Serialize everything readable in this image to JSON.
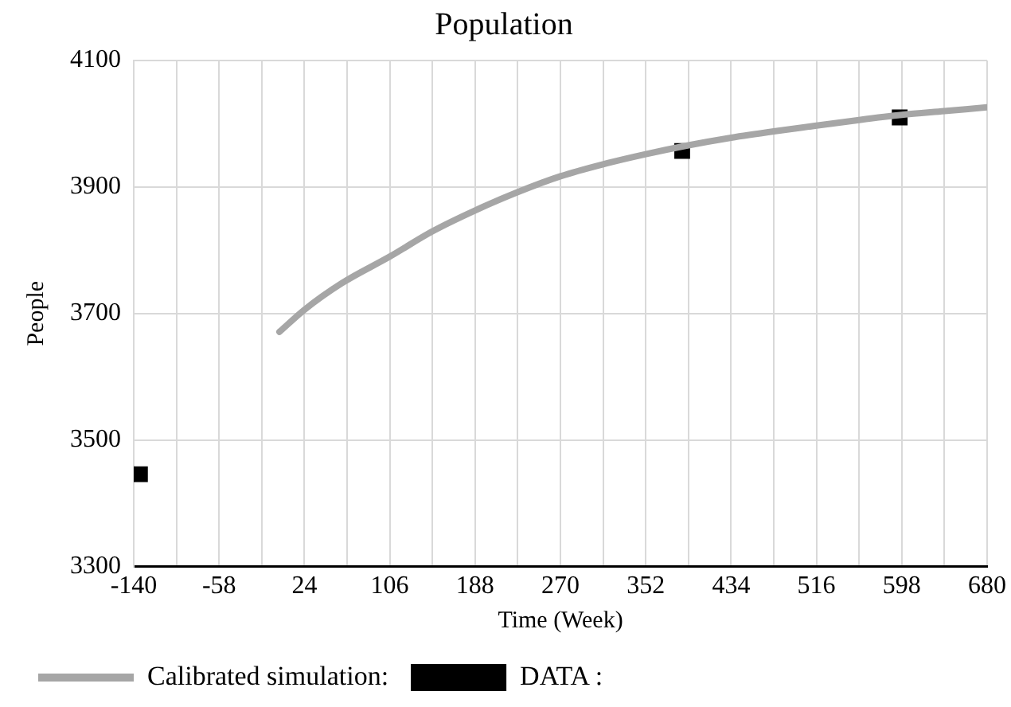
{
  "chart_data": {
    "type": "line",
    "title": "Population",
    "xlabel": "Time (Week)",
    "ylabel": "People",
    "xlim": [
      -140,
      680
    ],
    "xticks": [
      -140,
      {
        "value": -99,
        "label": null
      },
      -58,
      {
        "value": -17,
        "label": null
      },
      24,
      {
        "value": 65,
        "label": null
      },
      106,
      {
        "value": 147,
        "label": null
      },
      188,
      {
        "value": 229,
        "label": null
      },
      270,
      {
        "value": 311,
        "label": null
      },
      352,
      {
        "value": 393,
        "label": null
      },
      434,
      {
        "value": 475,
        "label": null
      },
      516,
      {
        "value": 557,
        "label": null
      },
      598,
      {
        "value": 639,
        "label": null
      },
      680
    ],
    "ylim": [
      3300,
      4100
    ],
    "yticks": [
      3300,
      3500,
      3700,
      3900,
      4100
    ],
    "grid": true,
    "legend": "bottom",
    "series": [
      {
        "name": "Calibrated simulation:",
        "color": "#a6a6a6",
        "marker": "none",
        "line_style": "solid",
        "x": [
          0,
          24,
          60,
          106,
          147,
          188,
          229,
          270,
          311,
          352,
          393,
          434,
          475,
          516,
          557,
          598,
          639,
          680
        ],
        "values": [
          3671,
          3706,
          3748,
          3790,
          3830,
          3863,
          3892,
          3917,
          3936,
          3952,
          3966,
          3978,
          3988,
          3997,
          4006,
          4014,
          4020,
          4026
        ]
      },
      {
        "name": "DATA :",
        "type": "scatter",
        "color": "#000000",
        "marker": "square",
        "x": [
          -134,
          387,
          596
        ],
        "values": [
          3446,
          3957,
          4010
        ]
      }
    ]
  }
}
